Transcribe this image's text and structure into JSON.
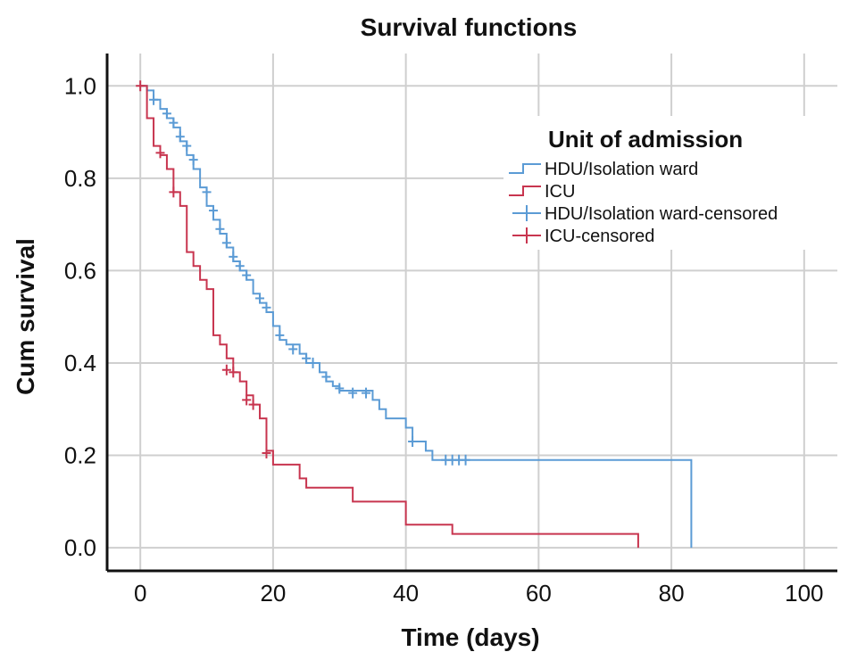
{
  "chart_data": {
    "type": "line",
    "subtype": "kaplan-meier step",
    "title": "Survival functions",
    "xlabel": "Time (days)",
    "ylabel": "Cum survival",
    "xlim": [
      -5,
      105
    ],
    "ylim": [
      -0.05,
      1.07
    ],
    "xticks": [
      0,
      20,
      40,
      60,
      80,
      100
    ],
    "xtick_labels": [
      "0",
      "20",
      "40",
      "60",
      "80",
      "100"
    ],
    "yticks": [
      0.0,
      0.2,
      0.4,
      0.6,
      0.8,
      1.0
    ],
    "ytick_labels": [
      "0.0",
      "0.2",
      "0.4",
      "0.6",
      "0.8",
      "1.0"
    ],
    "grid": true,
    "legend": {
      "title": "Unit of admission",
      "position": "top-right",
      "entries": [
        {
          "label": "HDU/Isolation ward",
          "style": "step",
          "color": "#5b9bd5"
        },
        {
          "label": "ICU",
          "style": "step",
          "color": "#c8354f"
        },
        {
          "label": "HDU/Isolation ward-censored",
          "style": "censor",
          "color": "#5b9bd5"
        },
        {
          "label": "ICU-censored",
          "style": "censor",
          "color": "#c8354f"
        }
      ]
    },
    "series": [
      {
        "name": "HDU/Isolation ward",
        "color": "#5b9bd5",
        "steps": [
          [
            0,
            1.0
          ],
          [
            1,
            0.99
          ],
          [
            2,
            0.97
          ],
          [
            3,
            0.95
          ],
          [
            4,
            0.93
          ],
          [
            5,
            0.91
          ],
          [
            6,
            0.88
          ],
          [
            7,
            0.85
          ],
          [
            8,
            0.82
          ],
          [
            9,
            0.78
          ],
          [
            10,
            0.74
          ],
          [
            11,
            0.71
          ],
          [
            12,
            0.68
          ],
          [
            13,
            0.65
          ],
          [
            14,
            0.62
          ],
          [
            15,
            0.6
          ],
          [
            16,
            0.58
          ],
          [
            17,
            0.55
          ],
          [
            18,
            0.53
          ],
          [
            19,
            0.51
          ],
          [
            20,
            0.48
          ],
          [
            21,
            0.45
          ],
          [
            22,
            0.44
          ],
          [
            24,
            0.42
          ],
          [
            25,
            0.4
          ],
          [
            27,
            0.38
          ],
          [
            28,
            0.36
          ],
          [
            29,
            0.35
          ],
          [
            30,
            0.34
          ],
          [
            35,
            0.32
          ],
          [
            36,
            0.3
          ],
          [
            37,
            0.28
          ],
          [
            40,
            0.26
          ],
          [
            41,
            0.23
          ],
          [
            43,
            0.21
          ],
          [
            44,
            0.19
          ],
          [
            83,
            0.0
          ]
        ],
        "end_x": 83,
        "censored": [
          [
            2,
            0.97
          ],
          [
            4,
            0.94
          ],
          [
            5,
            0.92
          ],
          [
            6,
            0.89
          ],
          [
            7,
            0.87
          ],
          [
            8,
            0.84
          ],
          [
            10,
            0.77
          ],
          [
            11,
            0.73
          ],
          [
            12,
            0.69
          ],
          [
            13,
            0.66
          ],
          [
            14,
            0.63
          ],
          [
            15,
            0.61
          ],
          [
            16,
            0.59
          ],
          [
            18,
            0.54
          ],
          [
            19,
            0.52
          ],
          [
            21,
            0.46
          ],
          [
            23,
            0.43
          ],
          [
            25,
            0.41
          ],
          [
            26,
            0.4
          ],
          [
            28,
            0.37
          ],
          [
            30,
            0.345
          ],
          [
            32,
            0.335
          ],
          [
            34,
            0.335
          ],
          [
            41,
            0.23
          ],
          [
            46,
            0.19
          ],
          [
            47,
            0.19
          ],
          [
            48,
            0.19
          ],
          [
            49,
            0.19
          ]
        ]
      },
      {
        "name": "ICU",
        "color": "#c8354f",
        "steps": [
          [
            0,
            1.0
          ],
          [
            1,
            0.93
          ],
          [
            2,
            0.87
          ],
          [
            3,
            0.85
          ],
          [
            4,
            0.82
          ],
          [
            5,
            0.77
          ],
          [
            6,
            0.74
          ],
          [
            7,
            0.64
          ],
          [
            8,
            0.61
          ],
          [
            9,
            0.58
          ],
          [
            10,
            0.56
          ],
          [
            11,
            0.46
          ],
          [
            12,
            0.44
          ],
          [
            13,
            0.41
          ],
          [
            14,
            0.38
          ],
          [
            15,
            0.36
          ],
          [
            16,
            0.33
          ],
          [
            17,
            0.31
          ],
          [
            18,
            0.28
          ],
          [
            19,
            0.21
          ],
          [
            20,
            0.18
          ],
          [
            24,
            0.15
          ],
          [
            25,
            0.13
          ],
          [
            32,
            0.1
          ],
          [
            40,
            0.05
          ],
          [
            47,
            0.03
          ],
          [
            75,
            0.0
          ]
        ],
        "end_x": 75,
        "censored": [
          [
            0,
            1.0
          ],
          [
            3,
            0.855
          ],
          [
            5,
            0.77
          ],
          [
            13,
            0.385
          ],
          [
            14,
            0.38
          ],
          [
            16,
            0.32
          ],
          [
            17,
            0.31
          ],
          [
            19,
            0.205
          ]
        ]
      }
    ]
  }
}
